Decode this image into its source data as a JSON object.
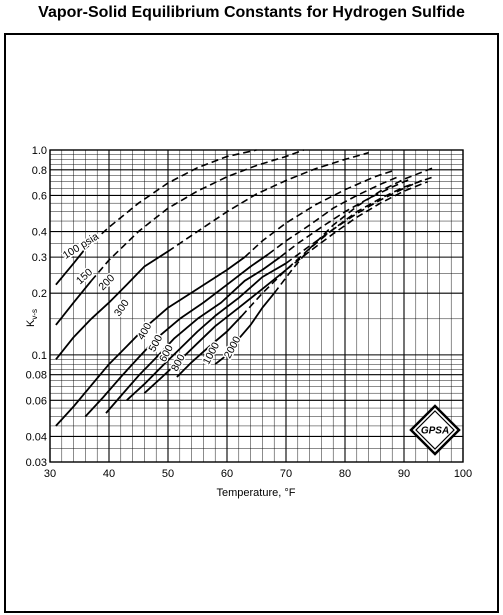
{
  "title": "Vapor-Solid Equilibrium Constants for Hydrogen Sulfide",
  "logo_text": "GPSA",
  "chart_data": {
    "type": "line",
    "title": "Vapor-Solid Equilibrium Constants for Hydrogen Sulfide",
    "xlabel": "Temperature, °F",
    "ylabel": "Kv-s",
    "xlim": [
      30,
      100
    ],
    "ylim": [
      0.03,
      1.0
    ],
    "yscale": "log",
    "grid": true,
    "x_ticks": [
      "30",
      "40",
      "50",
      "60",
      "70",
      "80",
      "90",
      "100"
    ],
    "y_ticks": [
      {
        "v": 0.03,
        "label": "0.03"
      },
      {
        "v": 0.04,
        "label": "0.04"
      },
      {
        "v": 0.06,
        "label": "0.06"
      },
      {
        "v": 0.08,
        "label": "0.08"
      },
      {
        "v": 0.1,
        "label": "0.1"
      },
      {
        "v": 0.2,
        "label": "0.2"
      },
      {
        "v": 0.3,
        "label": "0.3"
      },
      {
        "v": 0.4,
        "label": "0.4"
      },
      {
        "v": 0.6,
        "label": "0.6"
      },
      {
        "v": 0.8,
        "label": "0.8"
      },
      {
        "v": 1.0,
        "label": "1.0"
      }
    ],
    "series": [
      {
        "name": "100 psia",
        "label_x": 35.5,
        "label_y": 0.33,
        "label_rot": -32,
        "solid": [
          [
            31,
            0.22
          ],
          [
            34,
            0.28
          ],
          [
            36,
            0.33
          ]
        ],
        "dashed": [
          [
            36,
            0.33
          ],
          [
            40,
            0.42
          ],
          [
            45,
            0.55
          ],
          [
            50,
            0.69
          ],
          [
            55,
            0.82
          ],
          [
            60,
            0.93
          ],
          [
            65,
            1.0
          ]
        ]
      },
      {
        "name": "150",
        "label_x": 36.2,
        "label_y": 0.235,
        "label_rot": -42,
        "solid": [
          [
            31,
            0.14
          ],
          [
            34,
            0.18
          ],
          [
            37,
            0.23
          ]
        ],
        "dashed": [
          [
            37,
            0.23
          ],
          [
            40,
            0.29
          ],
          [
            45,
            0.4
          ],
          [
            50,
            0.52
          ],
          [
            55,
            0.63
          ],
          [
            60,
            0.74
          ],
          [
            65,
            0.84
          ],
          [
            70,
            0.93
          ],
          [
            73,
            1.0
          ]
        ]
      },
      {
        "name": "200",
        "label_x": 40,
        "label_y": 0.22,
        "label_rot": -45,
        "solid": [
          [
            31,
            0.095
          ],
          [
            34,
            0.122
          ],
          [
            37,
            0.15
          ],
          [
            40,
            0.18
          ],
          [
            43,
            0.22
          ],
          [
            46,
            0.27
          ],
          [
            50,
            0.32
          ]
        ],
        "dashed": [
          [
            50,
            0.32
          ],
          [
            55,
            0.4
          ],
          [
            60,
            0.5
          ],
          [
            65,
            0.61
          ],
          [
            70,
            0.71
          ],
          [
            75,
            0.81
          ],
          [
            80,
            0.9
          ],
          [
            84,
            0.97
          ]
        ]
      },
      {
        "name": "300",
        "label_x": 42.6,
        "label_y": 0.166,
        "label_rot": -55,
        "solid": [
          [
            31,
            0.045
          ],
          [
            34,
            0.056
          ],
          [
            37,
            0.071
          ],
          [
            40,
            0.09
          ],
          [
            43,
            0.11
          ],
          [
            46,
            0.135
          ],
          [
            50,
            0.17
          ],
          [
            55,
            0.21
          ],
          [
            60,
            0.26
          ],
          [
            63,
            0.3
          ]
        ],
        "dashed": [
          [
            63,
            0.3
          ],
          [
            66,
            0.36
          ],
          [
            70,
            0.44
          ],
          [
            75,
            0.54
          ],
          [
            80,
            0.64
          ],
          [
            85,
            0.74
          ],
          [
            88,
            0.79
          ]
        ]
      },
      {
        "name": "400",
        "label_x": 46.5,
        "label_y": 0.128,
        "label_rot": -60,
        "solid": [
          [
            36,
            0.05
          ],
          [
            39,
            0.062
          ],
          [
            42,
            0.078
          ],
          [
            45,
            0.097
          ],
          [
            48,
            0.12
          ],
          [
            52,
            0.15
          ],
          [
            56,
            0.18
          ],
          [
            60,
            0.22
          ],
          [
            64,
            0.27
          ],
          [
            67,
            0.31
          ]
        ],
        "dashed": [
          [
            67,
            0.31
          ],
          [
            70,
            0.36
          ],
          [
            74,
            0.43
          ],
          [
            78,
            0.52
          ],
          [
            82,
            0.6
          ],
          [
            86,
            0.68
          ],
          [
            89,
            0.74
          ]
        ]
      },
      {
        "name": "500",
        "label_x": 48.4,
        "label_y": 0.112,
        "label_rot": -62,
        "solid": [
          [
            39.5,
            0.052
          ],
          [
            42,
            0.063
          ],
          [
            45,
            0.079
          ],
          [
            48,
            0.097
          ],
          [
            51,
            0.12
          ],
          [
            55,
            0.15
          ],
          [
            59,
            0.18
          ],
          [
            63,
            0.23
          ],
          [
            66,
            0.26
          ],
          [
            69,
            0.3
          ]
        ],
        "dashed": [
          [
            69,
            0.3
          ],
          [
            72,
            0.35
          ],
          [
            76,
            0.42
          ],
          [
            80,
            0.5
          ],
          [
            84,
            0.58
          ],
          [
            88,
            0.66
          ],
          [
            91,
            0.72
          ]
        ]
      },
      {
        "name": "600",
        "label_x": 50.2,
        "label_y": 0.1,
        "label_rot": -62,
        "solid": [
          [
            43,
            0.06
          ],
          [
            46,
            0.072
          ],
          [
            49,
            0.088
          ],
          [
            52,
            0.107
          ],
          [
            55,
            0.13
          ],
          [
            58,
            0.155
          ],
          [
            62,
            0.19
          ],
          [
            66,
            0.24
          ],
          [
            70,
            0.28
          ]
        ],
        "dashed": [
          [
            70,
            0.28
          ],
          [
            74,
            0.34
          ],
          [
            78,
            0.41
          ],
          [
            82,
            0.49
          ],
          [
            86,
            0.57
          ],
          [
            90,
            0.65
          ],
          [
            93,
            0.71
          ]
        ]
      },
      {
        "name": "800",
        "label_x": 52.2,
        "label_y": 0.09,
        "label_rot": -62,
        "solid": [
          [
            46,
            0.065
          ],
          [
            49,
            0.078
          ],
          [
            52,
            0.094
          ],
          [
            55,
            0.114
          ],
          [
            58,
            0.138
          ],
          [
            62,
            0.17
          ],
          [
            66,
            0.21
          ],
          [
            70,
            0.26
          ]
        ],
        "dashed": [
          [
            70,
            0.26
          ],
          [
            74,
            0.32
          ],
          [
            78,
            0.39
          ],
          [
            82,
            0.47
          ],
          [
            86,
            0.55
          ],
          [
            90,
            0.63
          ],
          [
            94,
            0.7
          ]
        ]
      },
      {
        "name": "1000",
        "label_x": 57.8,
        "label_y": 0.1,
        "label_rot": -62,
        "solid": [
          [
            51.5,
            0.078
          ],
          [
            54,
            0.092
          ],
          [
            57,
            0.11
          ],
          [
            60,
            0.13
          ],
          [
            62.5,
            0.155
          ]
        ],
        "dashed": [
          [
            62.5,
            0.155
          ],
          [
            66,
            0.2
          ],
          [
            70,
            0.26
          ],
          [
            74,
            0.33
          ],
          [
            78,
            0.41
          ],
          [
            82,
            0.5
          ],
          [
            86,
            0.58
          ],
          [
            90,
            0.66
          ],
          [
            95,
            0.74
          ]
        ]
      },
      {
        "name": "2000",
        "label_x": 61.4,
        "label_y": 0.107,
        "label_rot": -62,
        "solid": [
          [
            58,
            0.09
          ],
          [
            60,
            0.1
          ],
          [
            62,
            0.12
          ],
          [
            64,
            0.14
          ],
          [
            66,
            0.17
          ],
          [
            68,
            0.2
          ]
        ],
        "dashed": [
          [
            68,
            0.2
          ],
          [
            71,
            0.26
          ],
          [
            74,
            0.33
          ],
          [
            78,
            0.43
          ],
          [
            82,
            0.53
          ],
          [
            86,
            0.63
          ],
          [
            90,
            0.72
          ],
          [
            95,
            0.82
          ]
        ]
      }
    ]
  }
}
